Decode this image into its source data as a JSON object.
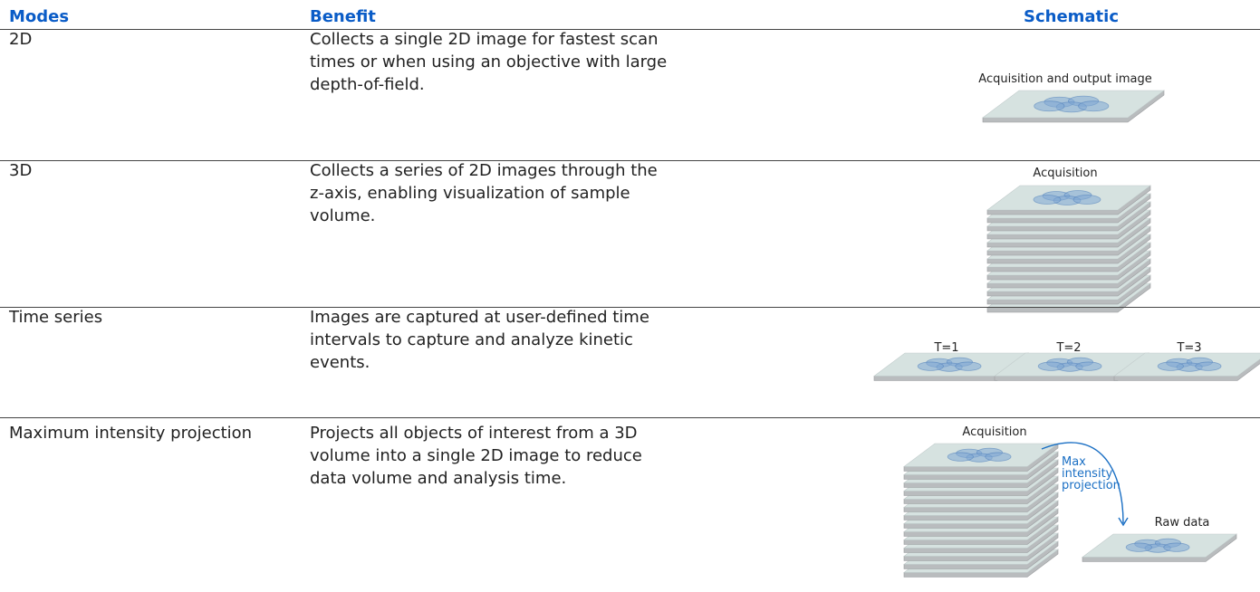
{
  "table": {
    "header": [
      "Modes",
      "Benefit",
      "Schematic"
    ],
    "rows": [
      [
        "2D",
        "Collects a single 2D image for fastest scan times or when using an objective with large depth-of-field."
      ],
      [
        "3D",
        "Collects a series of 2D images through the z-axis, enabling visualization of sample volume."
      ],
      [
        "Time series",
        "Images are captured at user-defined time intervals to capture and analyze kinetic events."
      ],
      [
        "Maximum intensity projection",
        "Projects all objects of interest from a 3D volume into a single 2D image to reduce data volume and analysis time."
      ]
    ]
  },
  "schematics": [
    {
      "labels": [
        "Acquisition and output image"
      ]
    },
    {
      "labels": [
        "Acquisition"
      ]
    },
    {
      "labels": [
        "T=1",
        "T=2",
        "T=3"
      ]
    },
    {
      "labels": [
        "Acquisition",
        "Max intensity projection",
        "Raw data"
      ]
    }
  ]
}
